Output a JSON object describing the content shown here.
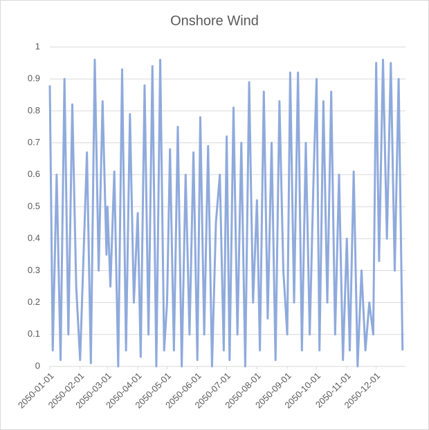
{
  "chart_data": {
    "type": "line",
    "title": "Onshore Wind",
    "x": [
      "2050-01-01",
      "2050-01-04",
      "2050-01-08",
      "2050-01-12",
      "2050-01-16",
      "2050-01-20",
      "2050-01-24",
      "2050-01-28",
      "2050-02-01",
      "2050-02-04",
      "2050-02-08",
      "2050-02-12",
      "2050-02-16",
      "2050-02-20",
      "2050-02-24",
      "2050-02-28",
      "2050-03-01",
      "2050-03-04",
      "2050-03-08",
      "2050-03-12",
      "2050-03-16",
      "2050-03-20",
      "2050-03-24",
      "2050-03-28",
      "2050-04-01",
      "2050-04-04",
      "2050-04-08",
      "2050-04-12",
      "2050-04-16",
      "2050-04-20",
      "2050-04-24",
      "2050-04-28",
      "2050-05-01",
      "2050-05-04",
      "2050-05-08",
      "2050-05-12",
      "2050-05-16",
      "2050-05-20",
      "2050-05-24",
      "2050-05-28",
      "2050-06-01",
      "2050-06-04",
      "2050-06-08",
      "2050-06-12",
      "2050-06-16",
      "2050-06-20",
      "2050-06-24",
      "2050-06-28",
      "2050-07-01",
      "2050-07-04",
      "2050-07-08",
      "2050-07-12",
      "2050-07-16",
      "2050-07-20",
      "2050-07-24",
      "2050-07-28",
      "2050-08-01",
      "2050-08-04",
      "2050-08-08",
      "2050-08-12",
      "2050-08-16",
      "2050-08-20",
      "2050-08-24",
      "2050-08-28",
      "2050-09-01",
      "2050-09-04",
      "2050-09-08",
      "2050-09-12",
      "2050-09-16",
      "2050-09-20",
      "2050-09-24",
      "2050-09-28",
      "2050-10-01",
      "2050-10-04",
      "2050-10-08",
      "2050-10-12",
      "2050-10-16",
      "2050-10-20",
      "2050-10-24",
      "2050-10-28",
      "2050-11-01",
      "2050-11-04",
      "2050-11-08",
      "2050-11-12",
      "2050-11-16",
      "2050-11-20",
      "2050-11-24",
      "2050-11-28",
      "2050-12-01",
      "2050-12-04",
      "2050-12-08",
      "2050-12-12",
      "2050-12-16",
      "2050-12-20",
      "2050-12-24",
      "2050-12-28"
    ],
    "series": [
      {
        "name": "Onshore Wind",
        "color": "#8faadc",
        "values": [
          0.88,
          0.05,
          0.6,
          0.02,
          0.9,
          0.1,
          0.82,
          0.25,
          0.02,
          0.3,
          0.67,
          0.01,
          0.96,
          0.3,
          0.83,
          0.35,
          0.5,
          0.25,
          0.61,
          0.0,
          0.93,
          0.05,
          0.79,
          0.2,
          0.48,
          0.03,
          0.88,
          0.1,
          0.94,
          0.0,
          0.96,
          0.05,
          0.2,
          0.68,
          0.05,
          0.75,
          0.0,
          0.6,
          0.1,
          0.67,
          0.02,
          0.78,
          0.1,
          0.69,
          0.0,
          0.45,
          0.6,
          0.05,
          0.72,
          0.02,
          0.81,
          0.1,
          0.7,
          0.0,
          0.89,
          0.2,
          0.52,
          0.05,
          0.86,
          0.15,
          0.7,
          0.02,
          0.83,
          0.3,
          0.1,
          0.92,
          0.2,
          0.92,
          0.05,
          0.7,
          0.1,
          0.6,
          0.9,
          0.05,
          0.83,
          0.2,
          0.86,
          0.1,
          0.6,
          0.02,
          0.4,
          0.05,
          0.61,
          0.0,
          0.3,
          0.05,
          0.2,
          0.1,
          0.95,
          0.33,
          0.96,
          0.4,
          0.95,
          0.3,
          0.9,
          0.05
        ]
      }
    ],
    "xlim": [
      "2050-01-01",
      "2050-12-31"
    ],
    "xticks": [
      "2050-01-01",
      "2050-02-01",
      "2050-03-01",
      "2050-04-01",
      "2050-05-01",
      "2050-06-01",
      "2050-07-01",
      "2050-08-01",
      "2050-09-01",
      "2050-10-01",
      "2050-11-01",
      "2050-12-01"
    ],
    "ylim": [
      0,
      1
    ],
    "yticks": [
      0,
      0.1,
      0.2,
      0.3,
      0.4,
      0.5,
      0.6,
      0.7,
      0.8,
      0.9,
      1
    ],
    "grid": true
  }
}
